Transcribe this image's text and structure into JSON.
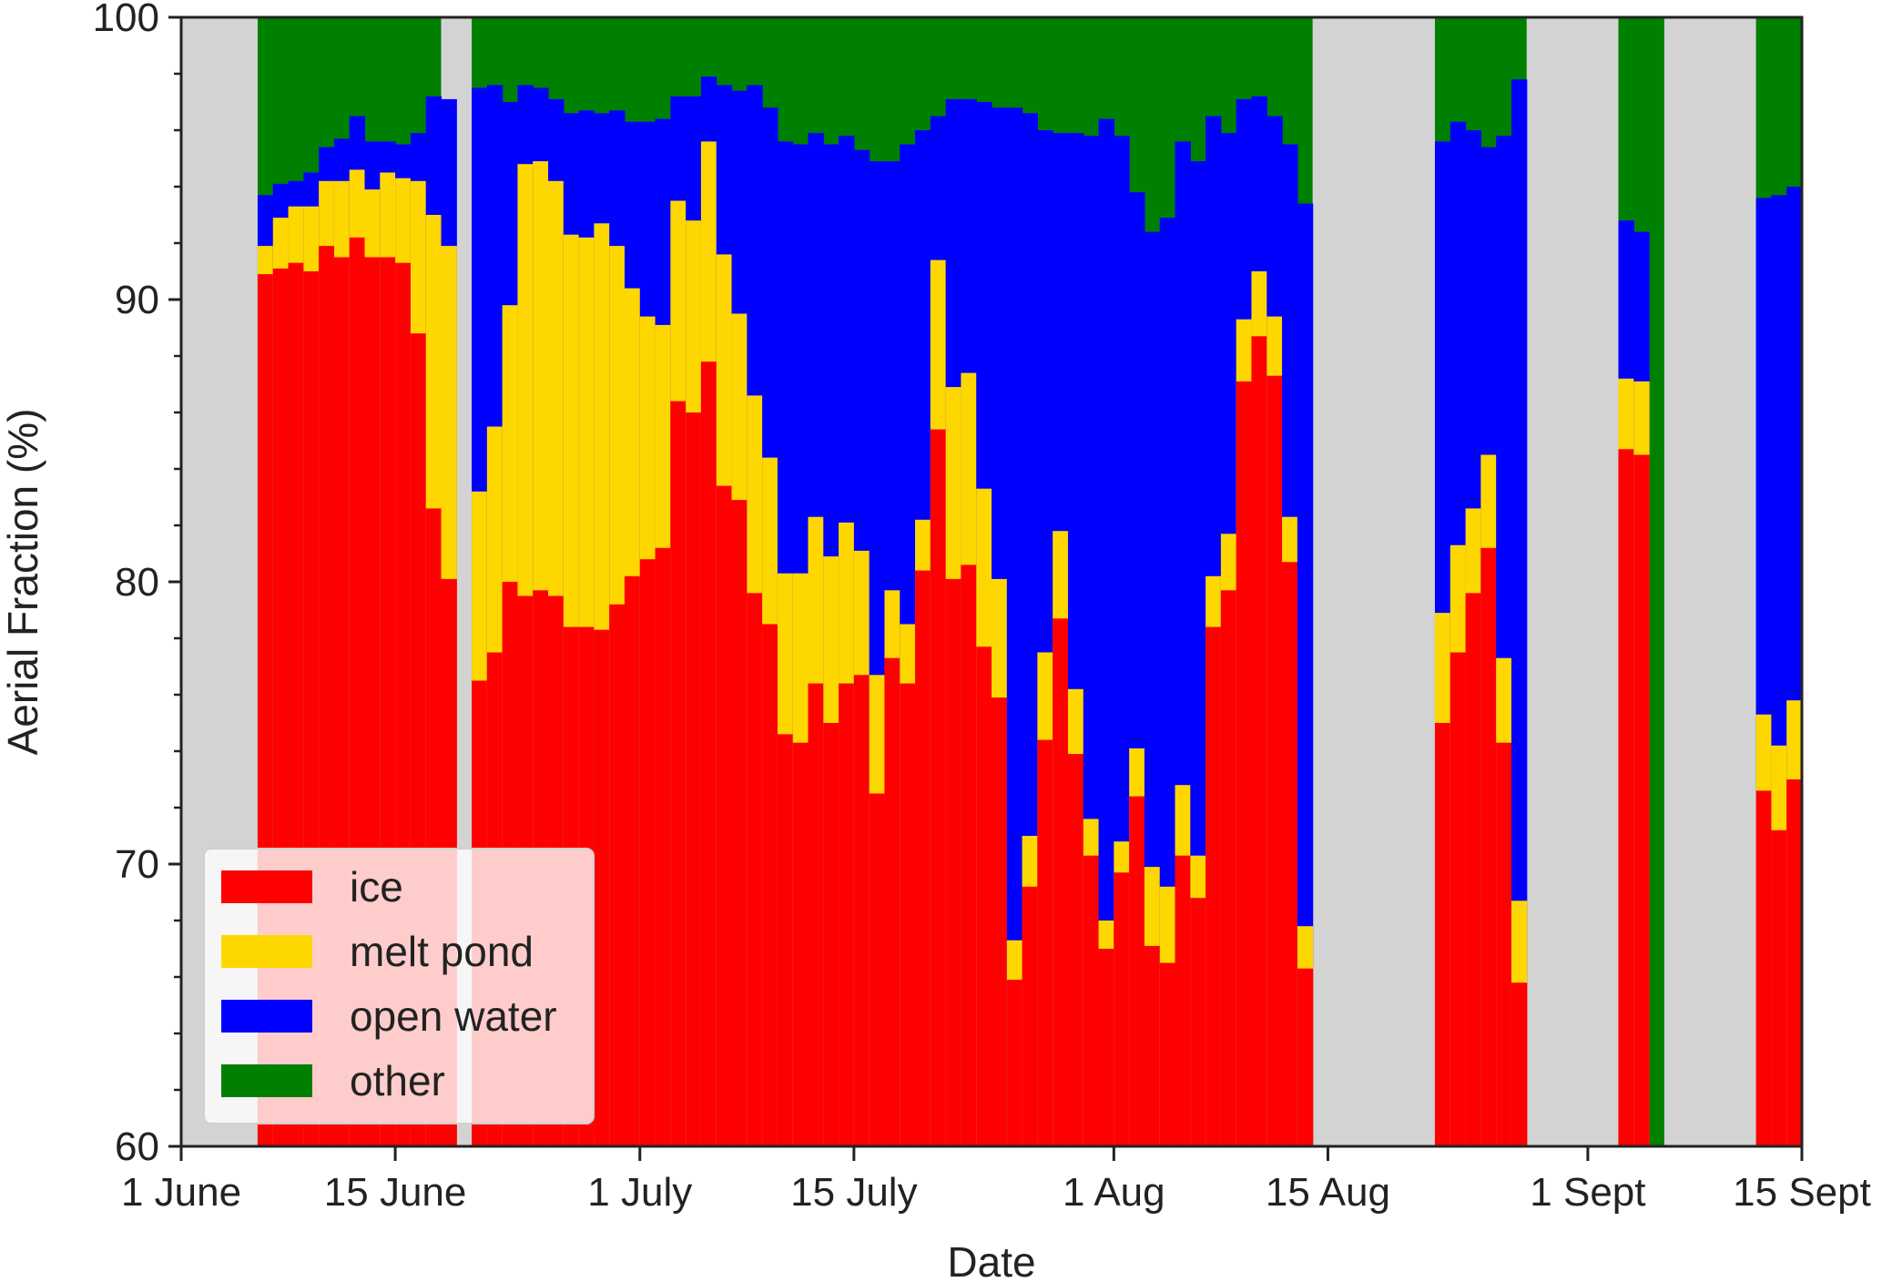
{
  "chart_data": {
    "type": "stacked-bar",
    "xlabel": "Date",
    "ylabel": "Aerial Fraction (%)",
    "ylim": [
      60,
      100
    ],
    "yticks": [
      60,
      70,
      80,
      90,
      100
    ],
    "xlim": [
      "1 June",
      "15 Sept"
    ],
    "xticks": [
      {
        "date": "1 June",
        "label": "1 June"
      },
      {
        "date": "15 June",
        "label": "15 June"
      },
      {
        "date": "1 July",
        "label": "1 July"
      },
      {
        "date": "15 July",
        "label": "15 July"
      },
      {
        "date": "1 Aug",
        "label": "1 Aug"
      },
      {
        "date": "15 Aug",
        "label": "15 Aug"
      },
      {
        "date": "1 Sept",
        "label": "1 Sept"
      },
      {
        "date": "15 Sept",
        "label": "15 Sept"
      }
    ],
    "series": [
      {
        "name": "ice",
        "color": "#ff0000"
      },
      {
        "name": "melt pond",
        "color": "#ffd700"
      },
      {
        "name": "open water",
        "color": "#0000ff"
      },
      {
        "name": "other",
        "color": "#008000"
      }
    ],
    "no_data_color": "#d3d3d3",
    "no_data_periods": [
      {
        "start": "1 June",
        "end": "6 June"
      },
      {
        "start": "18 June",
        "end": "20 June"
      },
      {
        "start": "14 Aug",
        "end": "22 Aug"
      },
      {
        "start": "28 Aug",
        "end": "3 Sept"
      },
      {
        "start": "6 Sept",
        "end": "12 Sept"
      }
    ],
    "columns": [
      {
        "date": "6 June",
        "ice": 90.9,
        "melt_pond": 91.9,
        "open_water": 93.7
      },
      {
        "date": "7 June",
        "ice": 91.1,
        "melt_pond": 92.9,
        "open_water": 94.1
      },
      {
        "date": "8 June",
        "ice": 91.3,
        "melt_pond": 93.3,
        "open_water": 94.2
      },
      {
        "date": "9 June",
        "ice": 91.0,
        "melt_pond": 93.3,
        "open_water": 94.5
      },
      {
        "date": "10 June",
        "ice": 91.9,
        "melt_pond": 94.2,
        "open_water": 95.4
      },
      {
        "date": "11 June",
        "ice": 91.5,
        "melt_pond": 94.2,
        "open_water": 95.7
      },
      {
        "date": "12 June",
        "ice": 92.2,
        "melt_pond": 94.6,
        "open_water": 96.5
      },
      {
        "date": "13 June",
        "ice": 91.5,
        "melt_pond": 93.9,
        "open_water": 95.6
      },
      {
        "date": "14 June",
        "ice": 91.5,
        "melt_pond": 94.5,
        "open_water": 95.6
      },
      {
        "date": "15 June",
        "ice": 91.3,
        "melt_pond": 94.3,
        "open_water": 95.5
      },
      {
        "date": "16 June",
        "ice": 88.8,
        "melt_pond": 94.2,
        "open_water": 95.9
      },
      {
        "date": "17 June",
        "ice": 82.6,
        "melt_pond": 93.0,
        "open_water": 97.2
      },
      {
        "date": "18 June",
        "ice": 80.1,
        "melt_pond": 91.9,
        "open_water": 97.1
      },
      {
        "date": "20 June",
        "ice": 76.5,
        "melt_pond": 83.2,
        "open_water": 97.5
      },
      {
        "date": "21 June",
        "ice": 77.5,
        "melt_pond": 85.5,
        "open_water": 97.6
      },
      {
        "date": "22 June",
        "ice": 80.0,
        "melt_pond": 89.8,
        "open_water": 97.0
      },
      {
        "date": "23 June",
        "ice": 79.5,
        "melt_pond": 94.8,
        "open_water": 97.6
      },
      {
        "date": "24 June",
        "ice": 79.7,
        "melt_pond": 94.9,
        "open_water": 97.5
      },
      {
        "date": "25 June",
        "ice": 79.5,
        "melt_pond": 94.2,
        "open_water": 97.1
      },
      {
        "date": "26 June",
        "ice": 78.4,
        "melt_pond": 92.3,
        "open_water": 96.6
      },
      {
        "date": "27 June",
        "ice": 78.4,
        "melt_pond": 92.2,
        "open_water": 96.7
      },
      {
        "date": "28 June",
        "ice": 78.3,
        "melt_pond": 92.7,
        "open_water": 96.6
      },
      {
        "date": "29 June",
        "ice": 79.2,
        "melt_pond": 91.9,
        "open_water": 96.7
      },
      {
        "date": "30 June",
        "ice": 80.2,
        "melt_pond": 90.4,
        "open_water": 96.3
      },
      {
        "date": "1 July",
        "ice": 80.8,
        "melt_pond": 89.4,
        "open_water": 96.3
      },
      {
        "date": "2 July",
        "ice": 81.2,
        "melt_pond": 89.1,
        "open_water": 96.4
      },
      {
        "date": "3 July",
        "ice": 86.4,
        "melt_pond": 93.5,
        "open_water": 97.2
      },
      {
        "date": "4 July",
        "ice": 86.0,
        "melt_pond": 92.8,
        "open_water": 97.2
      },
      {
        "date": "5 July",
        "ice": 87.8,
        "melt_pond": 95.6,
        "open_water": 97.9
      },
      {
        "date": "6 July",
        "ice": 83.4,
        "melt_pond": 91.6,
        "open_water": 97.6
      },
      {
        "date": "7 July",
        "ice": 82.9,
        "melt_pond": 89.5,
        "open_water": 97.4
      },
      {
        "date": "8 July",
        "ice": 79.6,
        "melt_pond": 86.6,
        "open_water": 97.6
      },
      {
        "date": "9 July",
        "ice": 78.5,
        "melt_pond": 84.4,
        "open_water": 96.8
      },
      {
        "date": "10 July",
        "ice": 74.6,
        "melt_pond": 80.3,
        "open_water": 95.6
      },
      {
        "date": "11 July",
        "ice": 74.3,
        "melt_pond": 80.3,
        "open_water": 95.5
      },
      {
        "date": "12 July",
        "ice": 76.4,
        "melt_pond": 82.3,
        "open_water": 95.9
      },
      {
        "date": "13 July",
        "ice": 75.0,
        "melt_pond": 80.9,
        "open_water": 95.5
      },
      {
        "date": "14 July",
        "ice": 76.4,
        "melt_pond": 82.1,
        "open_water": 95.8
      },
      {
        "date": "15 July",
        "ice": 76.7,
        "melt_pond": 81.1,
        "open_water": 95.3
      },
      {
        "date": "16 July",
        "ice": 72.5,
        "melt_pond": 76.7,
        "open_water": 94.9
      },
      {
        "date": "17 July",
        "ice": 77.3,
        "melt_pond": 79.7,
        "open_water": 94.9
      },
      {
        "date": "18 July",
        "ice": 76.4,
        "melt_pond": 78.5,
        "open_water": 95.5
      },
      {
        "date": "19 July",
        "ice": 80.4,
        "melt_pond": 82.2,
        "open_water": 96.0
      },
      {
        "date": "20 July",
        "ice": 85.4,
        "melt_pond": 91.4,
        "open_water": 96.5
      },
      {
        "date": "21 July",
        "ice": 80.1,
        "melt_pond": 86.9,
        "open_water": 97.1
      },
      {
        "date": "22 July",
        "ice": 80.6,
        "melt_pond": 87.4,
        "open_water": 97.1
      },
      {
        "date": "23 July",
        "ice": 77.7,
        "melt_pond": 83.3,
        "open_water": 97.0
      },
      {
        "date": "24 July",
        "ice": 75.9,
        "melt_pond": 80.1,
        "open_water": 96.8
      },
      {
        "date": "25 July",
        "ice": 65.9,
        "melt_pond": 67.3,
        "open_water": 96.8
      },
      {
        "date": "26 July",
        "ice": 69.2,
        "melt_pond": 71.0,
        "open_water": 96.6
      },
      {
        "date": "27 July",
        "ice": 74.4,
        "melt_pond": 77.5,
        "open_water": 96.0
      },
      {
        "date": "28 July",
        "ice": 78.7,
        "melt_pond": 81.8,
        "open_water": 95.9
      },
      {
        "date": "29 July",
        "ice": 73.9,
        "melt_pond": 76.2,
        "open_water": 95.9
      },
      {
        "date": "30 July",
        "ice": 70.3,
        "melt_pond": 71.6,
        "open_water": 95.8
      },
      {
        "date": "31 July",
        "ice": 67.0,
        "melt_pond": 68.0,
        "open_water": 96.4
      },
      {
        "date": "1 Aug",
        "ice": 69.7,
        "melt_pond": 70.8,
        "open_water": 95.8
      },
      {
        "date": "2 Aug",
        "ice": 72.4,
        "melt_pond": 74.1,
        "open_water": 93.8
      },
      {
        "date": "3 Aug",
        "ice": 67.1,
        "melt_pond": 69.9,
        "open_water": 92.4
      },
      {
        "date": "4 Aug",
        "ice": 66.5,
        "melt_pond": 69.2,
        "open_water": 92.9
      },
      {
        "date": "5 Aug",
        "ice": 70.3,
        "melt_pond": 72.8,
        "open_water": 95.6
      },
      {
        "date": "6 Aug",
        "ice": 68.8,
        "melt_pond": 70.3,
        "open_water": 94.9
      },
      {
        "date": "7 Aug",
        "ice": 78.4,
        "melt_pond": 80.2,
        "open_water": 96.5
      },
      {
        "date": "8 Aug",
        "ice": 79.7,
        "melt_pond": 81.7,
        "open_water": 95.9
      },
      {
        "date": "9 Aug",
        "ice": 87.1,
        "melt_pond": 89.3,
        "open_water": 97.1
      },
      {
        "date": "10 Aug",
        "ice": 88.7,
        "melt_pond": 91.0,
        "open_water": 97.2
      },
      {
        "date": "11 Aug",
        "ice": 87.3,
        "melt_pond": 89.4,
        "open_water": 96.5
      },
      {
        "date": "12 Aug",
        "ice": 80.7,
        "melt_pond": 82.3,
        "open_water": 95.5
      },
      {
        "date": "13 Aug",
        "ice": 66.3,
        "melt_pond": 67.8,
        "open_water": 93.4
      },
      {
        "date": "22 Aug",
        "ice": 75.0,
        "melt_pond": 78.9,
        "open_water": 95.6
      },
      {
        "date": "23 Aug",
        "ice": 77.5,
        "melt_pond": 81.3,
        "open_water": 96.3
      },
      {
        "date": "24 Aug",
        "ice": 79.6,
        "melt_pond": 82.6,
        "open_water": 96.0
      },
      {
        "date": "25 Aug",
        "ice": 81.2,
        "melt_pond": 84.5,
        "open_water": 95.4
      },
      {
        "date": "26 Aug",
        "ice": 74.3,
        "melt_pond": 77.3,
        "open_water": 95.8
      },
      {
        "date": "27 Aug",
        "ice": 65.8,
        "melt_pond": 68.7,
        "open_water": 97.8
      },
      {
        "date": "3 Sept",
        "ice": 84.7,
        "melt_pond": 87.2,
        "open_water": 92.8
      },
      {
        "date": "4 Sept",
        "ice": 84.5,
        "melt_pond": 87.1,
        "open_water": 92.4
      },
      {
        "date": "12 Sept",
        "ice": 72.6,
        "melt_pond": 75.3,
        "open_water": 93.6
      },
      {
        "date": "13 Sept",
        "ice": 71.2,
        "melt_pond": 74.2,
        "open_water": 93.7
      },
      {
        "date": "14 Sept",
        "ice": 73.0,
        "melt_pond": 75.8,
        "open_water": 94.0
      }
    ],
    "legend": {
      "placement": "lower-left",
      "entries": [
        {
          "label": "ice",
          "color": "#ff0000"
        },
        {
          "label": "melt pond",
          "color": "#ffd700"
        },
        {
          "label": "open water",
          "color": "#0000ff"
        },
        {
          "label": "other",
          "color": "#008000"
        }
      ]
    },
    "grid": false
  }
}
